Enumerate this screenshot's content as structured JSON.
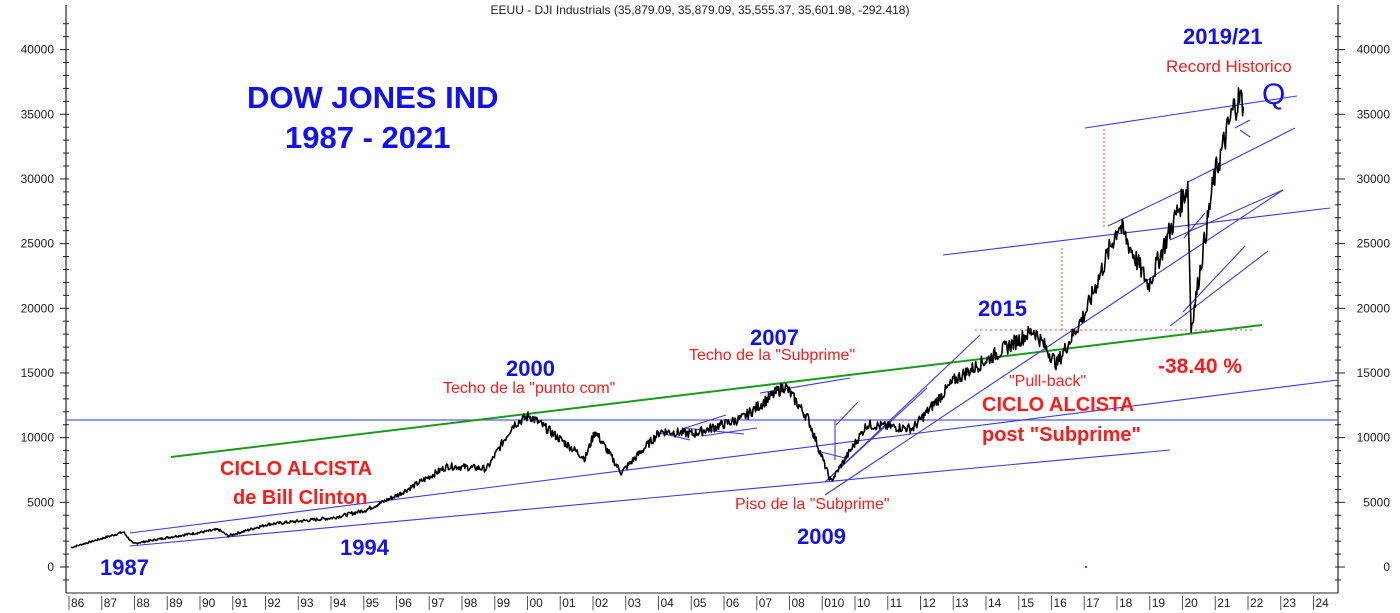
{
  "header": {
    "title": "EEUU - DJI  Industrials (35,879.09, 35,879.09, 35,555.37, 35,601.98, -292.418)"
  },
  "chart_data": {
    "type": "line",
    "title": "EEUU - DJI  Industrials (35,879.09, 35,879.09, 35,555.37, 35,601.98, -292.418)",
    "series_name": "DJI Industrials",
    "ohlc_last": {
      "open": 35879.09,
      "high": 35879.09,
      "low": 35555.37,
      "close": 35601.98,
      "change": -292.418
    },
    "xlabel": "",
    "ylabel": "",
    "ylim": [
      -1500,
      42000
    ],
    "yticks": [
      0,
      5000,
      10000,
      15000,
      20000,
      25000,
      30000,
      35000,
      40000
    ],
    "xticks": [
      "86",
      "87",
      "88",
      "89",
      "90",
      "91",
      "92",
      "93",
      "94",
      "95",
      "96",
      "97",
      "98",
      "99",
      "00",
      "01",
      "02",
      "03",
      "04",
      "05",
      "06",
      "07",
      "08",
      "010",
      "10",
      "11",
      "12",
      "13",
      "14",
      "15",
      "16",
      "17",
      "18",
      "19",
      "20",
      "21",
      "22",
      "23",
      "24"
    ],
    "grid": false,
    "legend": "none",
    "approx_points": [
      {
        "x": 1986.0,
        "y": 1500
      },
      {
        "x": 1987.6,
        "y": 2700
      },
      {
        "x": 1987.9,
        "y": 1800
      },
      {
        "x": 1989.0,
        "y": 2300
      },
      {
        "x": 1990.5,
        "y": 2900
      },
      {
        "x": 1990.8,
        "y": 2400
      },
      {
        "x": 1992.0,
        "y": 3300
      },
      {
        "x": 1994.0,
        "y": 3800
      },
      {
        "x": 1995.0,
        "y": 4400
      },
      {
        "x": 1996.0,
        "y": 5600
      },
      {
        "x": 1997.5,
        "y": 7800
      },
      {
        "x": 1998.7,
        "y": 7600
      },
      {
        "x": 1999.5,
        "y": 11000
      },
      {
        "x": 2000.0,
        "y": 11700
      },
      {
        "x": 2001.7,
        "y": 8400
      },
      {
        "x": 2002.0,
        "y": 10500
      },
      {
        "x": 2002.8,
        "y": 7300
      },
      {
        "x": 2004.0,
        "y": 10500
      },
      {
        "x": 2005.0,
        "y": 10300
      },
      {
        "x": 2006.5,
        "y": 11500
      },
      {
        "x": 2007.8,
        "y": 14000
      },
      {
        "x": 2008.5,
        "y": 11500
      },
      {
        "x": 2009.2,
        "y": 6600
      },
      {
        "x": 2010.3,
        "y": 11000
      },
      {
        "x": 2011.7,
        "y": 10700
      },
      {
        "x": 2013.0,
        "y": 14500
      },
      {
        "x": 2015.4,
        "y": 18300
      },
      {
        "x": 2016.1,
        "y": 15700
      },
      {
        "x": 2017.0,
        "y": 19800
      },
      {
        "x": 2018.0,
        "y": 26500
      },
      {
        "x": 2018.9,
        "y": 21800
      },
      {
        "x": 2020.1,
        "y": 29500
      },
      {
        "x": 2020.2,
        "y": 18400
      },
      {
        "x": 2020.9,
        "y": 30000
      },
      {
        "x": 2021.5,
        "y": 35500
      },
      {
        "x": 2021.7,
        "y": 36300
      },
      {
        "x": 2021.8,
        "y": 35600
      }
    ],
    "reference_lines": [
      {
        "type": "horizontal",
        "color": "#4c4cf0",
        "y": 11350
      },
      {
        "type": "horizontal-dotted",
        "color": "#ff4040",
        "y": 18300
      }
    ],
    "annotations": [
      {
        "text": "DOW JONES IND",
        "color": "#1010f0"
      },
      {
        "text": "1987 - 2021",
        "color": "#1010f0"
      },
      {
        "text": "1987",
        "color": "#1010f0"
      },
      {
        "text": "1994",
        "color": "#1010f0"
      },
      {
        "text": "CICLO ALCISTA",
        "color": "#ff1a1a"
      },
      {
        "text": "de Bill Clinton",
        "color": "#ff1a1a"
      },
      {
        "text": "2000",
        "color": "#1010f0"
      },
      {
        "text": "Techo de la \"punto com\"",
        "color": "#ff1a1a"
      },
      {
        "text": "2007",
        "color": "#1010f0"
      },
      {
        "text": "Techo de la \"Subprime\"",
        "color": "#ff1a1a"
      },
      {
        "text": "Piso de la \"Subprime\"",
        "color": "#ff1a1a"
      },
      {
        "text": "2009",
        "color": "#1010f0"
      },
      {
        "text": "2015",
        "color": "#1010f0"
      },
      {
        "text": "\"Pull-back\"",
        "color": "#ff1a1a"
      },
      {
        "text": "CICLO ALCISTA",
        "color": "#ff1a1a"
      },
      {
        "text": "post \"Subprime\"",
        "color": "#ff1a1a"
      },
      {
        "text": "-38.40 %",
        "color": "#ff1a1a"
      },
      {
        "text": "2019/21",
        "color": "#1010f0"
      },
      {
        "text": "Record Historico",
        "color": "#ff1a1a"
      },
      {
        "text": "Q",
        "color": "#1010f0"
      }
    ]
  },
  "annotations": {
    "main_title_1": "DOW JONES IND",
    "main_title_2": "1987 - 2021",
    "y1987": "1987",
    "y1994": "1994",
    "clinton_1": "CICLO ALCISTA",
    "clinton_2": "de Bill Clinton",
    "y2000": "2000",
    "techo_puntocom": "Techo de la \"punto com\"",
    "y2007": "2007",
    "techo_subprime": "Techo de la \"Subprime\"",
    "piso_subprime": "Piso de la \"Subprime\"",
    "y2009": "2009",
    "y2015": "2015",
    "pullback": "\"Pull-back\"",
    "post_1": "CICLO ALCISTA",
    "post_2": "post \"Subprime\"",
    "drop_pct": "-38.40 %",
    "y2019_21": "2019/21",
    "record": "Record Historico",
    "q_mark": "Q"
  },
  "colors": {
    "price": "#000000",
    "trendline": "#3a3ae8",
    "support_green": "#1a9a1a",
    "ref_red": "#ff4040",
    "annot_blue": "#1010f0",
    "annot_red": "#ff1a1a"
  }
}
